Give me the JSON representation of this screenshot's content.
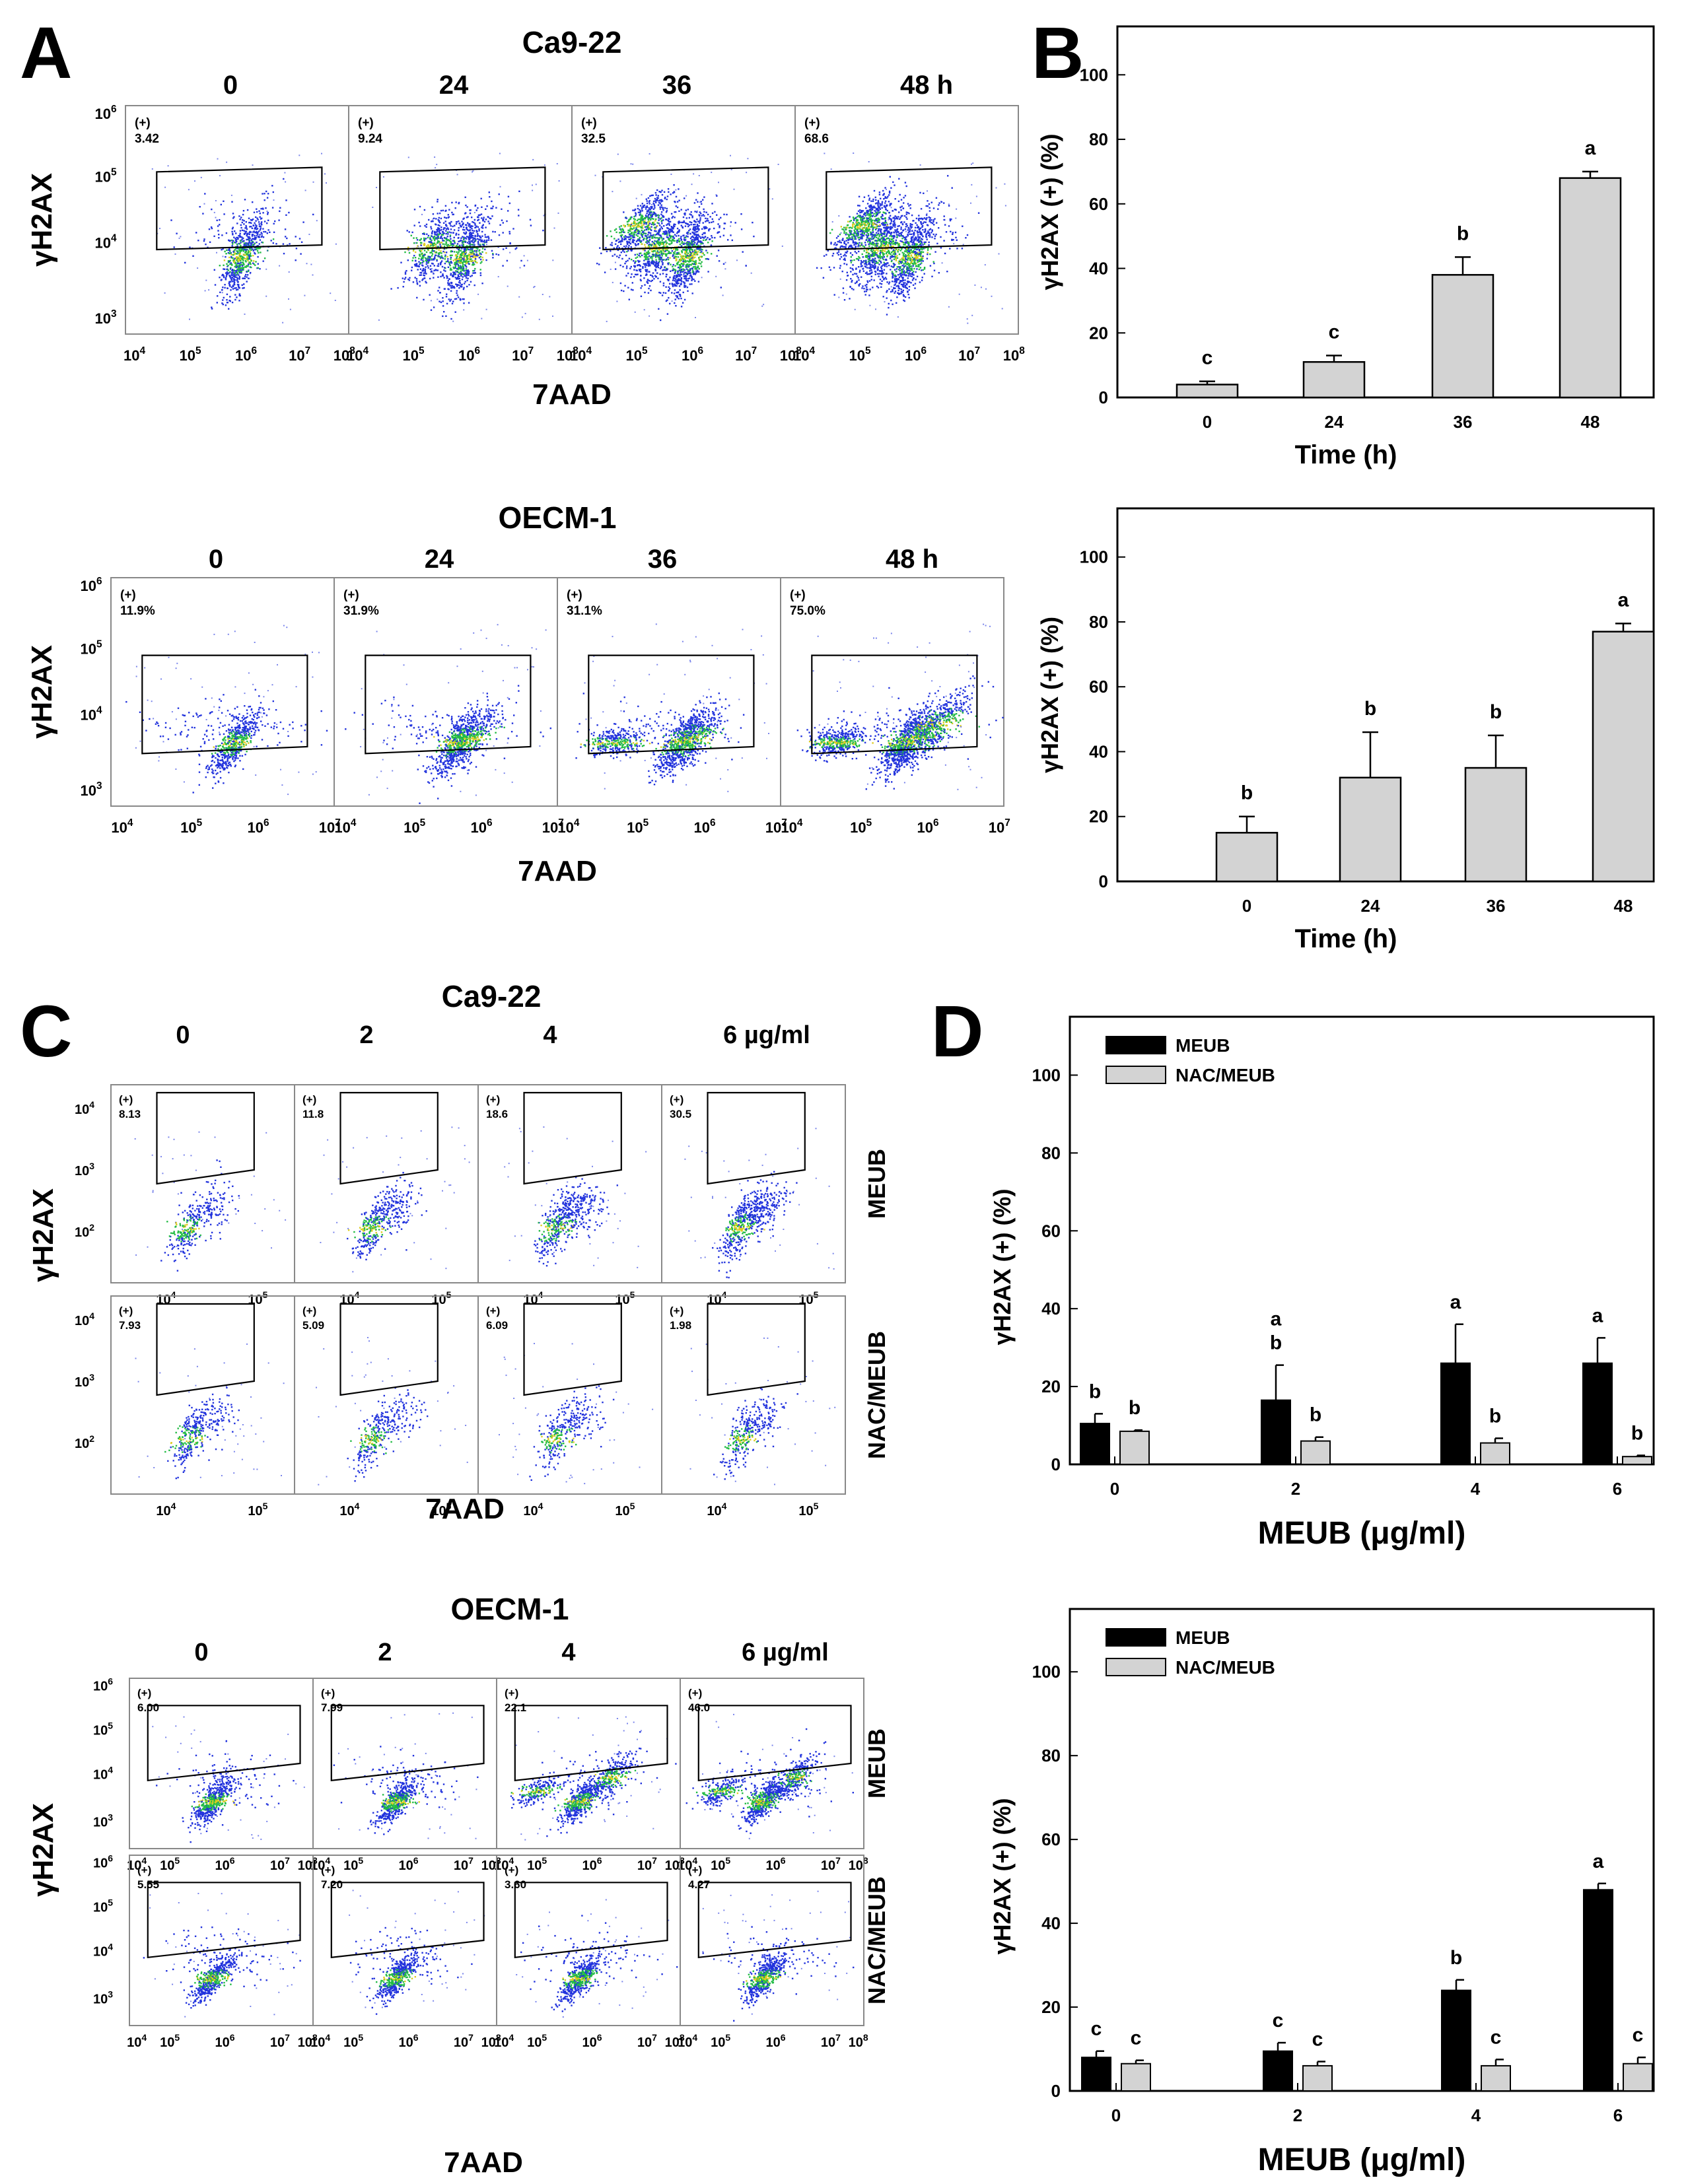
{
  "figure": {
    "panel_letters": [
      "A",
      "B",
      "C",
      "D"
    ],
    "colors": {
      "meub": "#000000",
      "nac_meub": "#d3d3d3",
      "single": "#d3d3d3",
      "dot_blue": "#2233dd",
      "dot_green": "#22bb44",
      "dot_yellow": "#ddcc22"
    }
  },
  "panelA": {
    "blocks": [
      {
        "title": "Ca9-22",
        "times": [
          "0",
          "24",
          "36",
          "48 h"
        ],
        "yaxis": "γH2AX",
        "xaxis": "7AAD",
        "ytick_labels": [
          "10",
          "10",
          "10",
          "10"
        ],
        "ytick_exps": [
          "6",
          "5",
          "4",
          "3"
        ],
        "xtick_labels": [
          "10",
          "10",
          "10",
          "10",
          "10"
        ],
        "xtick_exps": [
          "4",
          "5",
          "6",
          "7",
          "8"
        ],
        "plots": [
          {
            "gate": "(+)",
            "pct": "3.42"
          },
          {
            "gate": "(+)",
            "pct": "9.24"
          },
          {
            "gate": "(+)",
            "pct": "32.5"
          },
          {
            "gate": "(+)",
            "pct": "68.6"
          }
        ]
      },
      {
        "title": "OECM-1",
        "times": [
          "0",
          "24",
          "36",
          "48 h"
        ],
        "yaxis": "γH2AX",
        "xaxis": "7AAD",
        "ytick_labels": [
          "10",
          "10",
          "10",
          "10"
        ],
        "ytick_exps": [
          "6",
          "5",
          "4",
          "3"
        ],
        "xtick_labels": [
          "10",
          "10",
          "10",
          "10"
        ],
        "xtick_exps": [
          "4",
          "5",
          "6",
          "7"
        ],
        "plots": [
          {
            "gate": "(+)",
            "pct": "11.9%"
          },
          {
            "gate": "(+)",
            "pct": "31.9%"
          },
          {
            "gate": "(+)",
            "pct": "31.1%"
          },
          {
            "gate": "(+)",
            "pct": "75.0%"
          }
        ]
      }
    ]
  },
  "panelC": {
    "blocks": [
      {
        "title": "Ca9-22",
        "doses": [
          "0",
          "2",
          "4",
          "6 µg/ml"
        ],
        "yaxis": "γH2AX",
        "xaxis": "7AAD",
        "row_labels": [
          "MEUB",
          "NAC/MEUB"
        ],
        "ytick_labels": [
          "10",
          "10",
          "10"
        ],
        "ytick_exps": [
          "4",
          "3",
          "2"
        ],
        "xtick_labels": [
          "10",
          "10"
        ],
        "xtick_exps": [
          "4",
          "5"
        ],
        "rows": [
          [
            {
              "gate": "(+)",
              "pct": "8.13"
            },
            {
              "gate": "(+)",
              "pct": "11.8"
            },
            {
              "gate": "(+)",
              "pct": "18.6"
            },
            {
              "gate": "(+)",
              "pct": "30.5"
            }
          ],
          [
            {
              "gate": "(+)",
              "pct": "7.93"
            },
            {
              "gate": "(+)",
              "pct": "5.09"
            },
            {
              "gate": "(+)",
              "pct": "6.09"
            },
            {
              "gate": "(+)",
              "pct": "1.98"
            }
          ]
        ]
      },
      {
        "title": "OECM-1",
        "doses": [
          "0",
          "2",
          "4",
          "6 µg/ml"
        ],
        "yaxis": "γH2AX",
        "xaxis": "7AAD",
        "row_labels": [
          "MEUB",
          "NAC/MEUB"
        ],
        "ytick_labels": [
          "10",
          "10",
          "10",
          "10"
        ],
        "ytick_exps": [
          "6",
          "5",
          "4",
          "3"
        ],
        "xtick_labels": [
          "10",
          "10",
          "10",
          "10",
          "10"
        ],
        "xtick_exps": [
          "4",
          "5",
          "6",
          "7",
          "8"
        ],
        "rows": [
          [
            {
              "gate": "(+)",
              "pct": "6.00"
            },
            {
              "gate": "(+)",
              "pct": "7.99"
            },
            {
              "gate": "(+)",
              "pct": "22.1"
            },
            {
              "gate": "(+)",
              "pct": "46.0"
            }
          ],
          [
            {
              "gate": "(+)",
              "pct": "5.55"
            },
            {
              "gate": "(+)",
              "pct": "7.20"
            },
            {
              "gate": "(+)",
              "pct": "3.60"
            },
            {
              "gate": "(+)",
              "pct": "4.27"
            }
          ]
        ]
      }
    ]
  },
  "chart_data": [
    {
      "id": "B-top",
      "type": "bar",
      "title": "",
      "categories": [
        "0",
        "24",
        "36",
        "48"
      ],
      "values": [
        4,
        11,
        38,
        68
      ],
      "errors": [
        1,
        2,
        5.5,
        2
      ],
      "letters": [
        "c",
        "c",
        "b",
        "a"
      ],
      "xlabel": "Time (h)",
      "ylabel": "γH2AX (+) (%)",
      "ylim": [
        0,
        115
      ],
      "yticks": [
        0,
        20,
        40,
        60,
        80,
        100
      ]
    },
    {
      "id": "B-bottom",
      "type": "bar",
      "title": "",
      "categories": [
        "0",
        "24",
        "36",
        "48"
      ],
      "values": [
        15,
        32,
        35,
        77
      ],
      "errors": [
        5,
        14,
        10,
        2.5
      ],
      "letters": [
        "b",
        "b",
        "b",
        "a"
      ],
      "xlabel": "Time (h)",
      "ylabel": "γH2AX (+) (%)",
      "ylim": [
        0,
        115
      ],
      "yticks": [
        0,
        20,
        40,
        60,
        80,
        100
      ]
    },
    {
      "id": "D-top",
      "type": "bar",
      "title": "",
      "categories": [
        "0",
        "2",
        "4",
        "6"
      ],
      "series": [
        {
          "name": "MEUB",
          "values": [
            10.5,
            16.5,
            26,
            26
          ],
          "errors": [
            2.5,
            9,
            10,
            6.5
          ],
          "letters": [
            "b",
            "a\nb",
            "a",
            "a"
          ]
        },
        {
          "name": "NAC/MEUB",
          "values": [
            8.5,
            6,
            5.5,
            2
          ],
          "errors": [
            0.3,
            1,
            1.2,
            0.3
          ],
          "letters": [
            "b",
            "b",
            "b",
            "b"
          ]
        }
      ],
      "xlabel": "MEUB (μg/ml)",
      "ylabel": "γH2AX (+) (%)",
      "ylim": [
        0,
        115
      ],
      "yticks": [
        0,
        20,
        40,
        60,
        80,
        100
      ],
      "legend": "top-left"
    },
    {
      "id": "D-bottom",
      "type": "bar",
      "title": "",
      "categories": [
        "0",
        "2",
        "4",
        "6"
      ],
      "series": [
        {
          "name": "MEUB",
          "values": [
            8,
            9.5,
            24,
            48
          ],
          "errors": [
            1.5,
            2,
            2.5,
            1.5
          ],
          "letters": [
            "c",
            "c",
            "b",
            "a"
          ]
        },
        {
          "name": "NAC/MEUB",
          "values": [
            6.5,
            6,
            6,
            6.5
          ],
          "errors": [
            0.8,
            1,
            1.5,
            1.5
          ],
          "letters": [
            "c",
            "c",
            "c",
            "c"
          ]
        }
      ],
      "xlabel": "MEUB (μg/ml)",
      "ylabel": "γH2AX (+) (%)",
      "ylim": [
        0,
        115
      ],
      "yticks": [
        0,
        20,
        40,
        60,
        80,
        100
      ],
      "legend": "top-left"
    }
  ]
}
